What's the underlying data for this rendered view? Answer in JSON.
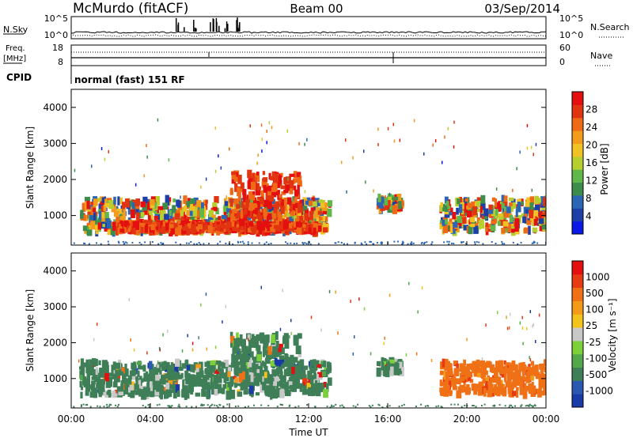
{
  "header": {
    "station": "McMurdo (fitACF)",
    "beam": "Beam 00",
    "date": "03/Sep/2014"
  },
  "params": {
    "nsky_label": "N.Sky",
    "nsky_ticks": [
      "10^5",
      "10^0"
    ],
    "nsearch_label": "N.Search",
    "nsearch_ticks": [
      "10^5",
      "10^0"
    ],
    "freq_label": "Freq.",
    "freq_unit": "[MHz]",
    "freq_ticks": [
      "18",
      "8"
    ],
    "nave_label": "Nave",
    "nave_ticks": [
      "60",
      "0"
    ],
    "cpid_label": "CPID",
    "cpid_text": "normal (fast) 151 RF"
  },
  "chart_data": [
    {
      "type": "heatmap",
      "name": "power",
      "title": "",
      "ylabel": "Slant Range [km]",
      "ylim": [
        180,
        4500
      ],
      "yticks": [
        "1000",
        "2000",
        "3000",
        "4000"
      ],
      "xlim": [
        0,
        24
      ],
      "xticks": [
        "00:00",
        "04:00",
        "08:00",
        "12:00",
        "16:00",
        "20:00",
        "00:00"
      ],
      "colorbar": {
        "label": "Power [dB]",
        "ticks": [
          "28",
          "24",
          "20",
          "16",
          "12",
          "8",
          "4"
        ],
        "colors": [
          "#0a18e6",
          "#1f3fa8",
          "#2a66b4",
          "#3c8c4c",
          "#5fb849",
          "#b6cf2f",
          "#f0c224",
          "#f39b1a",
          "#ef6a16",
          "#e13512",
          "#e41010"
        ]
      },
      "regions": [
        {
          "t": [
            0.4,
            13.0
          ],
          "r": [
            520,
            1450
          ],
          "level": "mixed"
        },
        {
          "t": [
            2.0,
            12.5
          ],
          "r": [
            560,
            780
          ],
          "level": "high"
        },
        {
          "t": [
            8.0,
            11.5
          ],
          "r": [
            900,
            2200
          ],
          "level": "high"
        },
        {
          "t": [
            15.4,
            16.6
          ],
          "r": [
            1150,
            1500
          ],
          "level": "mixed"
        },
        {
          "t": [
            18.6,
            24.0
          ],
          "r": [
            550,
            1450
          ],
          "level": "mixed"
        }
      ]
    },
    {
      "type": "heatmap",
      "name": "velocity",
      "title": "",
      "ylabel": "Slant Range [km]",
      "ylim": [
        180,
        4500
      ],
      "yticks": [
        "1000",
        "2000",
        "3000",
        "4000"
      ],
      "xlim": [
        0,
        24
      ],
      "xticks": [
        "00:00",
        "04:00",
        "08:00",
        "12:00",
        "16:00",
        "20:00",
        "00:00"
      ],
      "xlabel": "Time UT",
      "colorbar": {
        "label": "Velocity [m s⁻¹]",
        "ticks": [
          "1000",
          "500",
          "100",
          "25",
          "-25",
          "-100",
          "-500",
          "-1000"
        ],
        "colors": [
          "#1a3aa8",
          "#2b58b0",
          "#3f7f58",
          "#52a84b",
          "#7cd13a",
          "#c8c8c8",
          "#f3c31d",
          "#f39a18",
          "#f07016",
          "#e53a12",
          "#e41010"
        ]
      },
      "regions": [
        {
          "t": [
            0.4,
            13.0
          ],
          "r": [
            520,
            1450
          ],
          "level": "green"
        },
        {
          "t": [
            8.0,
            11.5
          ],
          "r": [
            900,
            2200
          ],
          "level": "green"
        },
        {
          "t": [
            15.4,
            16.6
          ],
          "r": [
            1150,
            1500
          ],
          "level": "green"
        },
        {
          "t": [
            18.6,
            24.0
          ],
          "r": [
            550,
            1450
          ],
          "level": "orange"
        }
      ]
    }
  ]
}
